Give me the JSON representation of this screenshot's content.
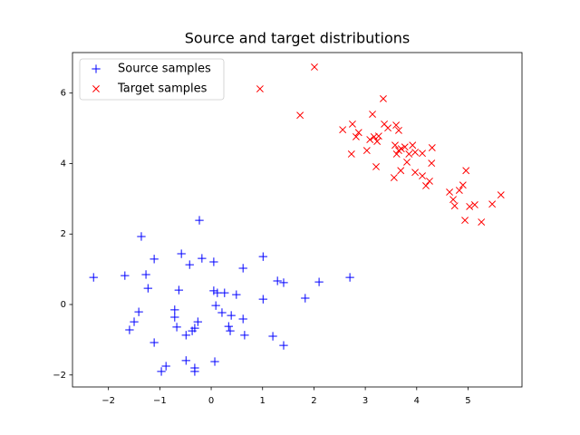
{
  "chart_data": {
    "type": "scatter",
    "title": "Source and target distributions",
    "xlim": [
      -2.7,
      6.05
    ],
    "ylim": [
      -2.34,
      7.15
    ],
    "xticks": [
      {
        "value": -2,
        "label": "−2"
      },
      {
        "value": -1,
        "label": "−1"
      },
      0,
      1,
      2,
      3,
      4,
      5
    ],
    "yticks": [
      {
        "value": -2,
        "label": "−2"
      },
      0,
      2,
      4,
      6
    ],
    "legend": "upper left",
    "series": [
      {
        "name": "Source samples",
        "color": "#0000ff",
        "marker": "+",
        "x": [
          -2.29,
          -1.68,
          -1.36,
          -0.23,
          -1.27,
          -1.23,
          -1.11,
          -1.59,
          -1.5,
          -1.41,
          -1.11,
          -0.97,
          -0.88,
          -0.58,
          -0.42,
          -0.18,
          0.05,
          0.62,
          1.01,
          -0.63,
          -0.71,
          -0.71,
          -0.67,
          -0.49,
          -0.32,
          -0.37,
          -0.26,
          -0.49,
          -0.32,
          -0.32,
          0.07,
          0.05,
          0.12,
          0.26,
          0.09,
          0.21,
          0.39,
          0.34,
          0.37,
          0.49,
          0.62,
          0.65,
          1.01,
          1.29,
          1.41,
          1.2,
          1.41,
          1.83,
          2.1,
          2.7
        ],
        "values": [
          0.77,
          0.82,
          1.93,
          2.39,
          0.85,
          0.46,
          1.29,
          -0.72,
          -0.49,
          -0.21,
          -1.08,
          -1.9,
          -1.75,
          1.44,
          1.13,
          1.31,
          1.21,
          1.03,
          1.36,
          0.41,
          -0.15,
          -0.36,
          -0.64,
          -0.87,
          -0.67,
          -0.75,
          -0.49,
          -1.59,
          -1.8,
          -1.9,
          -1.62,
          0.39,
          0.33,
          0.33,
          -0.03,
          -0.23,
          -0.31,
          -0.62,
          -0.75,
          0.28,
          -0.41,
          -0.87,
          0.15,
          0.67,
          0.62,
          -0.9,
          -1.16,
          0.18,
          0.64,
          0.77
        ]
      },
      {
        "name": "Target samples",
        "color": "#ff0000",
        "marker": "x",
        "x": [
          2.01,
          0.95,
          1.73,
          3.35,
          2.56,
          2.75,
          2.87,
          2.82,
          2.73,
          3.03,
          3.14,
          3.17,
          3.09,
          3.23,
          3.26,
          3.37,
          3.44,
          3.6,
          3.65,
          3.21,
          3.58,
          3.65,
          3.61,
          3.7,
          3.77,
          3.92,
          3.85,
          3.97,
          4.11,
          4.3,
          4.29,
          3.56,
          3.69,
          3.81,
          3.97,
          4.11,
          4.18,
          4.25,
          4.64,
          4.71,
          4.74,
          4.83,
          4.9,
          4.96,
          5.03,
          4.94,
          5.13,
          5.26,
          5.47,
          5.64
        ],
        "values": [
          6.74,
          6.12,
          5.37,
          5.84,
          4.96,
          5.12,
          4.88,
          4.76,
          4.27,
          4.37,
          5.4,
          4.76,
          4.68,
          4.63,
          4.78,
          5.12,
          5.01,
          5.09,
          4.94,
          3.91,
          4.52,
          4.37,
          4.27,
          4.42,
          4.47,
          4.52,
          4.27,
          4.32,
          4.29,
          4.45,
          4.01,
          3.6,
          3.8,
          4.04,
          3.75,
          3.65,
          3.37,
          3.5,
          3.19,
          2.98,
          2.8,
          3.24,
          3.39,
          3.8,
          2.78,
          2.39,
          2.83,
          2.34,
          2.85,
          3.11
        ]
      }
    ]
  }
}
